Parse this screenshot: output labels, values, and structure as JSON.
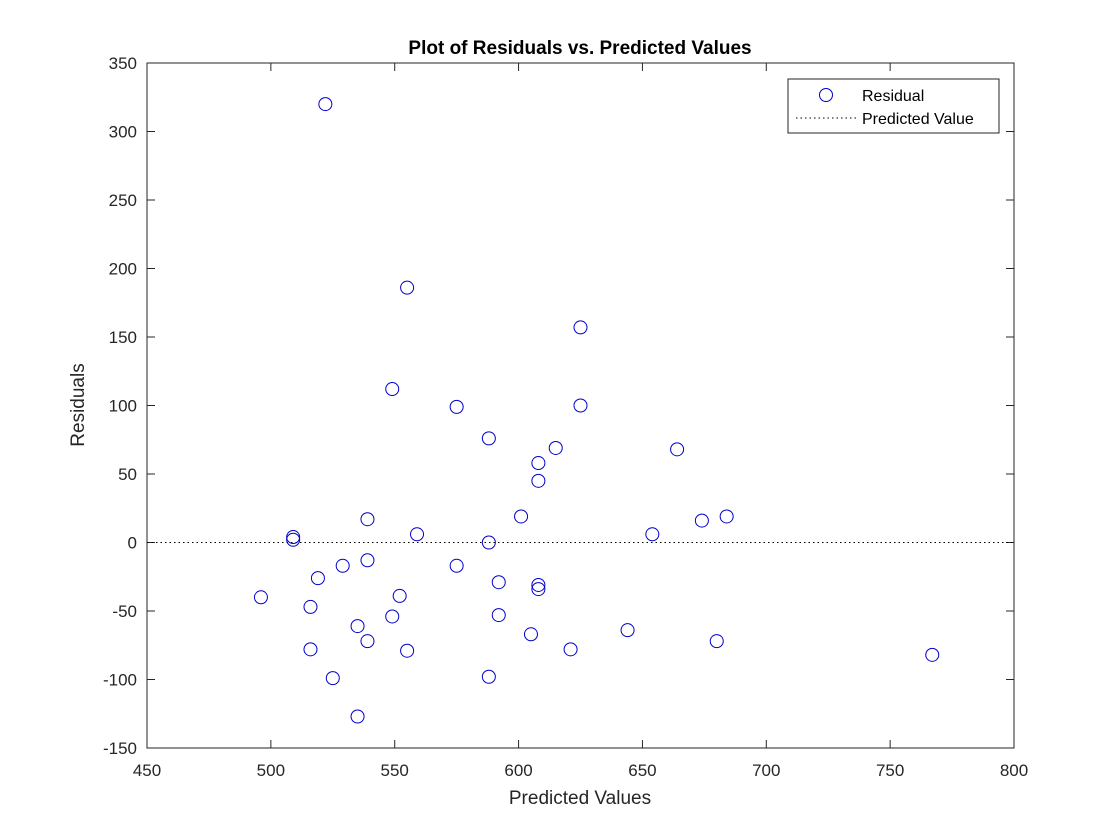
{
  "chart_data": {
    "type": "scatter",
    "title": "Plot of Residuals vs. Predicted Values",
    "xlabel": "Predicted Values",
    "ylabel": "Residuals",
    "xlim": [
      450,
      800
    ],
    "ylim": [
      -150,
      350
    ],
    "xticks": [
      450,
      500,
      550,
      600,
      650,
      700,
      750,
      800
    ],
    "yticks": [
      -150,
      -100,
      -50,
      0,
      50,
      100,
      150,
      200,
      250,
      300,
      350
    ],
    "grid": false,
    "legend_position": "top-right",
    "series": [
      {
        "name": "Residual",
        "marker": "open-circle",
        "color": "#0000cc",
        "points": [
          [
            522,
            320
          ],
          [
            555,
            186
          ],
          [
            625,
            157
          ],
          [
            549,
            112
          ],
          [
            575,
            99
          ],
          [
            625,
            100
          ],
          [
            588,
            76
          ],
          [
            615,
            69
          ],
          [
            664,
            68
          ],
          [
            608,
            58
          ],
          [
            608,
            45
          ],
          [
            601,
            19
          ],
          [
            684,
            19
          ],
          [
            674,
            16
          ],
          [
            539,
            17
          ],
          [
            654,
            6
          ],
          [
            559,
            6
          ],
          [
            509,
            4
          ],
          [
            509,
            2
          ],
          [
            588,
            0
          ],
          [
            539,
            -13
          ],
          [
            575,
            -17
          ],
          [
            529,
            -17
          ],
          [
            519,
            -26
          ],
          [
            592,
            -29
          ],
          [
            608,
            -31
          ],
          [
            608,
            -34
          ],
          [
            552,
            -39
          ],
          [
            496,
            -40
          ],
          [
            516,
            -47
          ],
          [
            549,
            -54
          ],
          [
            592,
            -53
          ],
          [
            535,
            -61
          ],
          [
            605,
            -67
          ],
          [
            644,
            -64
          ],
          [
            539,
            -72
          ],
          [
            680,
            -72
          ],
          [
            516,
            -78
          ],
          [
            555,
            -79
          ],
          [
            621,
            -78
          ],
          [
            767,
            -82
          ],
          [
            525,
            -99
          ],
          [
            588,
            -98
          ],
          [
            535,
            -127
          ]
        ]
      },
      {
        "name": "Predicted Value",
        "line_style": "dotted",
        "color": "#000000",
        "y": 0
      }
    ]
  }
}
